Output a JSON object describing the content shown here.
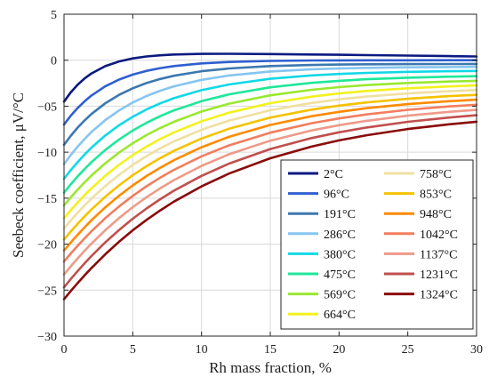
{
  "chart_data": {
    "type": "line",
    "title": "",
    "xlabel": "Rh mass fraction, %",
    "ylabel": "Seebeck coefficient, μV/°C",
    "xlim": [
      0,
      30
    ],
    "ylim": [
      -30,
      5
    ],
    "xticks": [
      0,
      5,
      10,
      15,
      20,
      25,
      30
    ],
    "yticks": [
      5,
      0,
      -5,
      -10,
      -15,
      -20,
      -25,
      -30
    ],
    "ytick_labels": [
      "5",
      "0",
      "−05",
      "−10",
      "−15",
      "−20",
      "−25",
      "−30"
    ],
    "grid": true,
    "legend_position": "bottom-right",
    "x": [
      0,
      0.5,
      1,
      1.5,
      2,
      3,
      4,
      5,
      6,
      7,
      8,
      10,
      12,
      15,
      18,
      20,
      22,
      25,
      28,
      30
    ],
    "series": [
      {
        "name": "2°C",
        "color": "#0a1a80",
        "y0": -4.5,
        "asym": 0.3,
        "k": 0.42
      },
      {
        "name": "96°C",
        "color": "#2f5fd0",
        "y0": -7.0,
        "asym": 0.0,
        "k": 0.3
      },
      {
        "name": "191°C",
        "color": "#3c78b0",
        "y0": -9.2,
        "asym": -0.4,
        "k": 0.24
      },
      {
        "name": "286°C",
        "color": "#86c5f0",
        "y0": -11.3,
        "asym": -0.7,
        "k": 0.2
      },
      {
        "name": "380°C",
        "color": "#12d8e6",
        "y0": -12.9,
        "asym": -1.1,
        "k": 0.17
      },
      {
        "name": "475°C",
        "color": "#1ee89a",
        "y0": -14.4,
        "asym": -1.6,
        "k": 0.15
      },
      {
        "name": "569°C",
        "color": "#9ae830",
        "y0": -15.8,
        "asym": -2.0,
        "k": 0.135
      },
      {
        "name": "664°C",
        "color": "#f2f21e",
        "y0": -17.2,
        "asym": -2.4,
        "k": 0.125
      },
      {
        "name": "758°C",
        "color": "#f0e0a0",
        "y0": -18.3,
        "asym": -2.8,
        "k": 0.118
      },
      {
        "name": "853°C",
        "color": "#f5c200",
        "y0": -19.5,
        "asym": -3.2,
        "k": 0.112
      },
      {
        "name": "948°C",
        "color": "#ff8a00",
        "y0": -20.7,
        "asym": -3.6,
        "k": 0.107
      },
      {
        "name": "1042°C",
        "color": "#f37d5e",
        "y0": -21.9,
        "asym": -4.0,
        "k": 0.102
      },
      {
        "name": "1137°C",
        "color": "#ee9a88",
        "y0": -23.3,
        "asym": -4.4,
        "k": 0.098
      },
      {
        "name": "1231°C",
        "color": "#c0504d",
        "y0": -24.7,
        "asym": -4.8,
        "k": 0.094
      },
      {
        "name": "1324°C",
        "color": "#8a0a0a",
        "y0": -26.0,
        "asym": -5.3,
        "k": 0.09
      }
    ]
  }
}
